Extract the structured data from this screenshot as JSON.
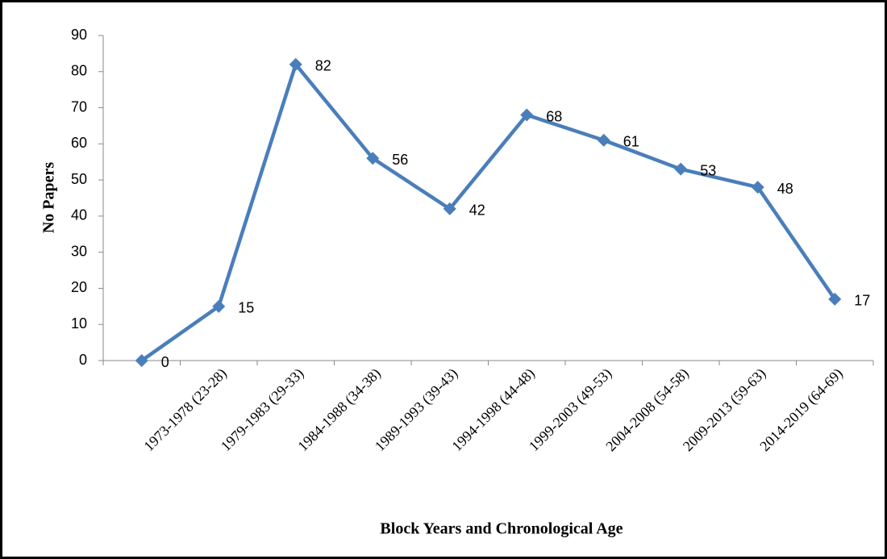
{
  "chart_data": {
    "type": "line",
    "x_label": "Block Years and Chronological Age",
    "y_label": "No Papers",
    "categories": [
      null,
      "1973-1978 (23-28)",
      "1979-1983 (29-33)",
      "1984-1988 (34-38)",
      "1989-1993 (39-43)",
      "1994-1998 (44-48)",
      "1999-2003 (49-53)",
      "2004-2008 (54-58)",
      "2009-2013 (59-63)",
      "2014-2019 (64-69)"
    ],
    "values": [
      0,
      15,
      82,
      56,
      42,
      68,
      61,
      53,
      48,
      17
    ],
    "color": "#4a7ebb",
    "ylim": [
      0,
      90
    ],
    "yticks": [
      0,
      10,
      20,
      30,
      40,
      50,
      60,
      70,
      80,
      90
    ],
    "grid": false
  }
}
